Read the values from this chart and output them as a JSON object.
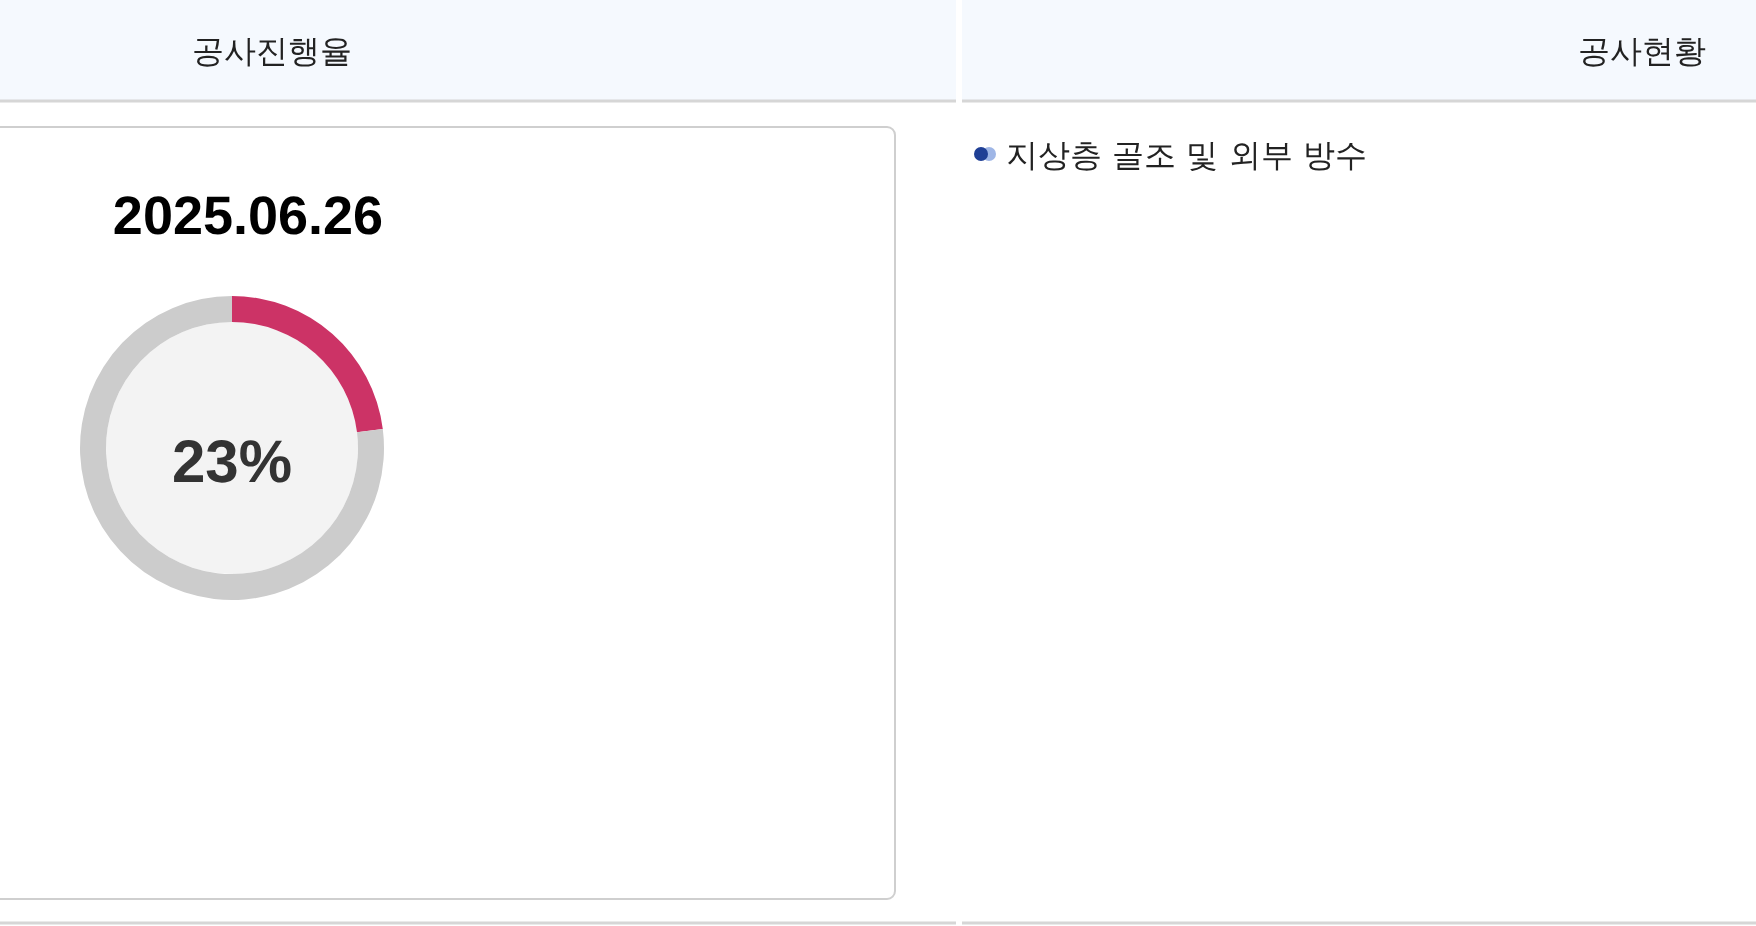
{
  "chart_data": [
    {
      "type": "donut",
      "title": "공사진행율",
      "subtitle": "2025.06.26",
      "categories": [
        null,
        null
      ],
      "values": [
        23,
        77
      ],
      "colors": [
        "#cc3366",
        "#cccccc"
      ],
      "annotations": [
        "23%"
      ]
    },
    {
      "type": "other",
      "title": "공사현황",
      "annotations": [
        "지상층 골조 및 외부 방수"
      ]
    }
  ]
}
